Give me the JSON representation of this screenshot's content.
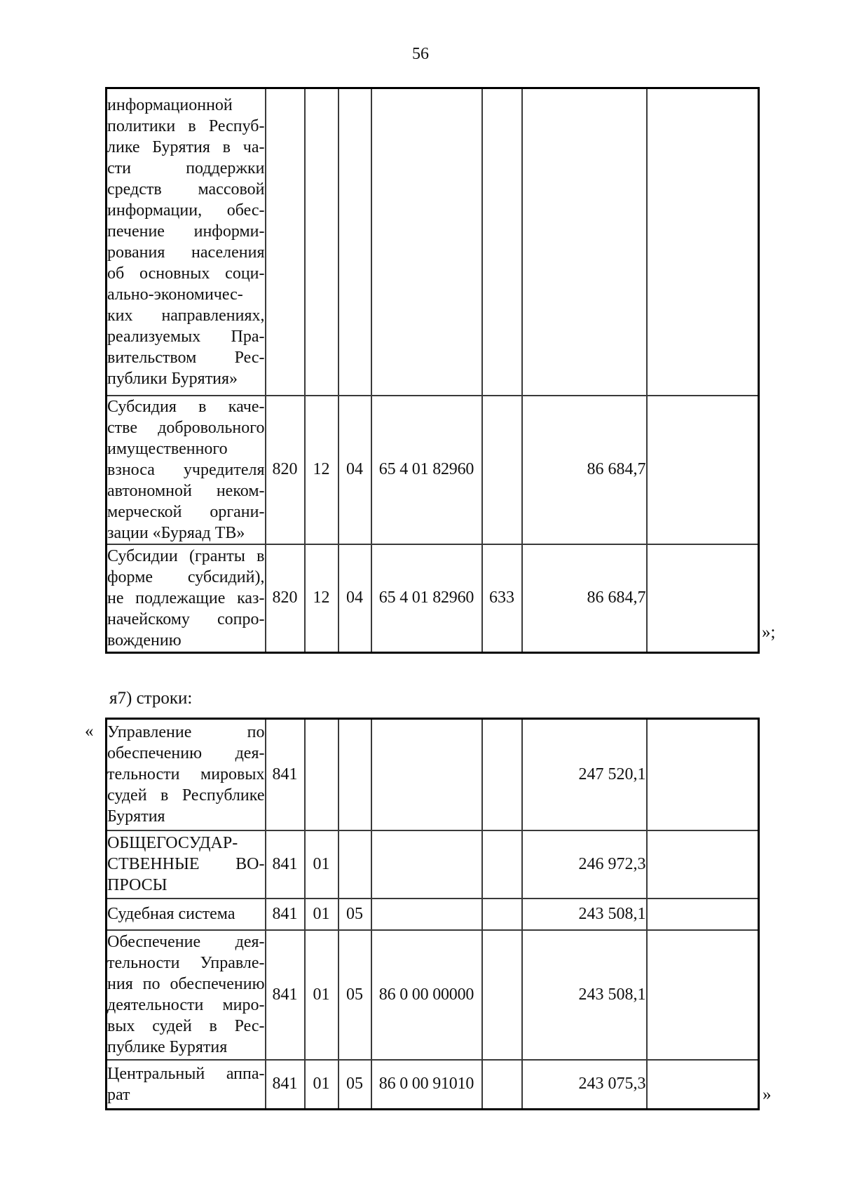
{
  "page_number": "56",
  "section_label": "я7) строки:",
  "marks": {
    "table1_close": "»;",
    "table2_open": "«",
    "table2_close": "»"
  },
  "table1": {
    "rows": [
      {
        "name_lines": [
          "информационной",
          "политики в Респуб-",
          "лике Бурятия в ча-",
          "сти поддержки",
          "средств массовой",
          "информации, обес-",
          "печение информи-",
          "рования населения",
          "об основных соци-",
          "ально-экономичес-",
          "ких направлениях,",
          "реализуемых Пра-",
          "вительством Рес-",
          "публики Бурятия»"
        ],
        "grbs": "",
        "rz": "",
        "pr": "",
        "csr": "",
        "vr": "",
        "amount": ""
      },
      {
        "name_lines": [
          "Субсидия в каче-",
          "стве добровольного",
          "имущественного",
          "взноса учредителя",
          "автономной неком-",
          "мерческой органи-",
          "зации «Буряад ТВ»"
        ],
        "grbs": "820",
        "rz": "12",
        "pr": "04",
        "csr": "65 4 01 82960",
        "vr": "",
        "amount": "86 684,7"
      },
      {
        "name_lines": [
          "Субсидии (гранты в",
          "форме субсидий),",
          "не подлежащие каз-",
          "начейскому сопро-",
          "вождению"
        ],
        "grbs": "820",
        "rz": "12",
        "pr": "04",
        "csr": "65 4 01 82960",
        "vr": "633",
        "amount": "86 684,7"
      }
    ]
  },
  "table2": {
    "rows": [
      {
        "name_lines": [
          "Управление по",
          "обеспечению дея-",
          "тельности мировых",
          "судей в Республике",
          "Бурятия"
        ],
        "grbs": "841",
        "rz": "",
        "pr": "",
        "csr": "",
        "vr": "",
        "amount": "247 520,1"
      },
      {
        "name_lines": [
          "ОБЩЕГОСУДАР-",
          "СТВЕННЫЕ ВО-",
          "ПРОСЫ"
        ],
        "grbs": "841",
        "rz": "01",
        "pr": "",
        "csr": "",
        "vr": "",
        "amount": "246 972,3"
      },
      {
        "name_lines": [
          "Судебная система"
        ],
        "grbs": "841",
        "rz": "01",
        "pr": "05",
        "csr": "",
        "vr": "",
        "amount": "243 508,1"
      },
      {
        "name_lines": [
          "Обеспечение дея-",
          "тельности Управле-",
          "ния по обеспечению",
          "деятельности миро-",
          "вых судей в Рес-",
          "публике Бурятия"
        ],
        "grbs": "841",
        "rz": "01",
        "pr": "05",
        "csr": "86 0 00 00000",
        "vr": "",
        "amount": "243 508,1"
      },
      {
        "name_lines": [
          "Центральный аппа-",
          "рат"
        ],
        "grbs": "841",
        "rz": "01",
        "pr": "05",
        "csr": "86 0 00 91010",
        "vr": "",
        "amount": "243 075,3"
      }
    ]
  }
}
